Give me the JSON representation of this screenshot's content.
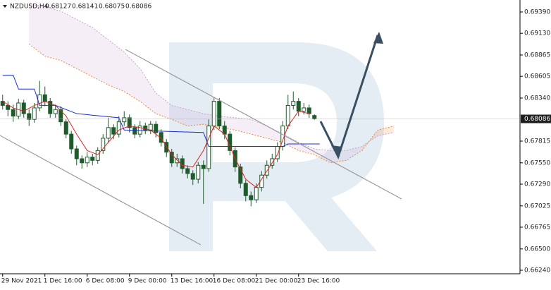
{
  "chart_data": {
    "type": "candlestick",
    "symbol": "NZDUSD,H4",
    "header_values": [
      0.68127,
      0.68141,
      0.68075,
      0.68086
    ],
    "categories": [
      "29 Nov 2021",
      null,
      null,
      null,
      null,
      null,
      null,
      null,
      "1 Dec 16:00",
      null,
      null,
      null,
      null,
      null,
      null,
      null,
      "6 Dec 08:00",
      null,
      null,
      null,
      null,
      null,
      null,
      null,
      "9 Dec 00:00",
      null,
      null,
      null,
      null,
      null,
      null,
      null,
      "13 Dec 16:00",
      null,
      null,
      null,
      null,
      null,
      null,
      null,
      "16 Dec 08:00",
      null,
      null,
      null,
      null,
      null,
      null,
      null,
      "21 Dec 00:00",
      null,
      null,
      null,
      null,
      null,
      null,
      null,
      "23 Dec 16:00",
      null,
      null,
      null
    ],
    "open": [
      0.683,
      0.6825,
      0.682,
      0.6812,
      0.6828,
      0.6815,
      0.6808,
      0.6822,
      0.6838,
      0.683,
      0.6815,
      0.682,
      0.6805,
      0.679,
      0.6772,
      0.676,
      0.6755,
      0.6762,
      0.6758,
      0.677,
      0.6785,
      0.6798,
      0.679,
      0.6805,
      0.681,
      0.6798,
      0.679,
      0.68,
      0.6795,
      0.6802,
      0.6792,
      0.678,
      0.6768,
      0.6755,
      0.676,
      0.6748,
      0.6742,
      0.6735,
      0.6752,
      0.6748,
      0.68,
      0.683,
      0.68,
      0.679,
      0.677,
      0.675,
      0.673,
      0.6715,
      0.671,
      0.6725,
      0.674,
      0.6752,
      0.676,
      0.6775,
      0.68,
      0.6825,
      0.683,
      0.6818,
      0.6822,
      0.68127
    ],
    "high": [
      0.6838,
      0.683,
      0.6826,
      0.6833,
      0.6832,
      0.682,
      0.6828,
      0.6855,
      0.6848,
      0.6834,
      0.6826,
      0.6824,
      0.6808,
      0.6794,
      0.6776,
      0.6764,
      0.6768,
      0.6766,
      0.6774,
      0.679,
      0.681,
      0.6802,
      0.6812,
      0.6818,
      0.6814,
      0.6802,
      0.6806,
      0.6804,
      0.6806,
      0.6806,
      0.6796,
      0.6784,
      0.6772,
      0.6766,
      0.6764,
      0.6752,
      0.6746,
      0.6756,
      0.6758,
      0.6808,
      0.6835,
      0.6834,
      0.6806,
      0.6794,
      0.6774,
      0.6754,
      0.6734,
      0.672,
      0.673,
      0.6745,
      0.6758,
      0.6766,
      0.678,
      0.6806,
      0.6838,
      0.6842,
      0.6834,
      0.6828,
      0.6826,
      0.68141
    ],
    "low": [
      0.682,
      0.6812,
      0.6805,
      0.6808,
      0.681,
      0.68,
      0.6804,
      0.6818,
      0.6824,
      0.681,
      0.681,
      0.68,
      0.6785,
      0.6766,
      0.6752,
      0.6748,
      0.675,
      0.6752,
      0.6754,
      0.6766,
      0.678,
      0.6784,
      0.6786,
      0.68,
      0.6792,
      0.6785,
      0.6786,
      0.679,
      0.679,
      0.6786,
      0.6775,
      0.6762,
      0.675,
      0.675,
      0.6742,
      0.6736,
      0.6728,
      0.673,
      0.6705,
      0.6744,
      0.6795,
      0.6796,
      0.6784,
      0.6764,
      0.6744,
      0.6724,
      0.6708,
      0.6702,
      0.6706,
      0.672,
      0.6736,
      0.6748,
      0.6756,
      0.677,
      0.6796,
      0.682,
      0.6812,
      0.6814,
      0.681,
      0.68075
    ],
    "close": [
      0.6825,
      0.682,
      0.6812,
      0.6828,
      0.6815,
      0.6808,
      0.6822,
      0.6838,
      0.683,
      0.6815,
      0.682,
      0.6805,
      0.679,
      0.6772,
      0.676,
      0.6755,
      0.6762,
      0.6758,
      0.677,
      0.6785,
      0.6798,
      0.679,
      0.6805,
      0.681,
      0.6798,
      0.679,
      0.68,
      0.6795,
      0.6802,
      0.6792,
      0.678,
      0.6768,
      0.6755,
      0.676,
      0.6748,
      0.6742,
      0.6735,
      0.6752,
      0.6748,
      0.68,
      0.683,
      0.68,
      0.679,
      0.677,
      0.675,
      0.673,
      0.6715,
      0.671,
      0.6725,
      0.674,
      0.6752,
      0.676,
      0.6775,
      0.68,
      0.6825,
      0.683,
      0.6818,
      0.6822,
      0.6815,
      0.68086
    ],
    "up_color": "#ffffff",
    "down_color": "#1f5a2c",
    "candle_stroke": "#1f5a2c",
    "lines": [
      {
        "color": "#e02020",
        "x": [
          0,
          2,
          4,
          6,
          8,
          10,
          12,
          14,
          16,
          18,
          20,
          22,
          24,
          26,
          28,
          30,
          32,
          34,
          36,
          38,
          40,
          42,
          44,
          46,
          48,
          50,
          52,
          54,
          56,
          58
        ],
        "values": [
          0.683,
          0.6822,
          0.6818,
          0.6825,
          0.683,
          0.6825,
          0.6812,
          0.679,
          0.677,
          0.6765,
          0.678,
          0.6795,
          0.68,
          0.6798,
          0.6795,
          0.6785,
          0.6765,
          0.6752,
          0.675,
          0.677,
          0.68,
          0.679,
          0.676,
          0.6735,
          0.6725,
          0.6745,
          0.6765,
          0.68,
          0.6818,
          0.6815
        ]
      },
      {
        "color": "#1c2fd8",
        "x": [
          0,
          2,
          3,
          6,
          7,
          10,
          14,
          22,
          23,
          38,
          39,
          53,
          54,
          60
        ],
        "values": [
          0.6862,
          0.6862,
          0.6845,
          0.6845,
          0.6825,
          0.6825,
          0.6815,
          0.681,
          0.6795,
          0.6792,
          0.6775,
          0.6775,
          0.6778,
          0.6778
        ]
      }
    ],
    "cloud": {
      "x": [
        5,
        8,
        11,
        14,
        17,
        20,
        23,
        26,
        29,
        32,
        35,
        38,
        41,
        44,
        47,
        50,
        53,
        56,
        59,
        62,
        65,
        68,
        71,
        74
      ],
      "span_a": [
        0.69,
        0.6885,
        0.688,
        0.687,
        0.686,
        0.685,
        0.6842,
        0.683,
        0.6815,
        0.6808,
        0.68,
        0.6802,
        0.6798,
        0.6795,
        0.679,
        0.6785,
        0.678,
        0.677,
        0.6765,
        0.6755,
        0.6758,
        0.677,
        0.6795,
        0.68
      ],
      "span_b": [
        0.6948,
        0.6946,
        0.694,
        0.693,
        0.692,
        0.6905,
        0.689,
        0.687,
        0.684,
        0.6825,
        0.682,
        0.6815,
        0.6812,
        0.681,
        0.6808,
        0.68,
        0.679,
        0.678,
        0.6772,
        0.677,
        0.677,
        0.6775,
        0.6788,
        0.6792
      ],
      "span_a_color": "#f08a3c",
      "span_b_color": "#c9a0d0"
    },
    "current_price": 0.68086,
    "ylim": [
      0.66197,
      0.69536
    ],
    "yticks": [
      {
        "value": 0.6939,
        "label": "0.69390"
      },
      {
        "value": 0.6913,
        "label": "0.69130"
      },
      0.68865,
      0.68605,
      {
        "value": 0.6834,
        "label": "0.68340"
      },
      0.67815,
      {
        "value": 0.6755,
        "label": "0.67550"
      },
      {
        "value": 0.6729,
        "label": "0.67290"
      },
      0.67025,
      0.66765,
      {
        "value": 0.665,
        "label": "0.66500"
      },
      {
        "value": 0.6624,
        "label": "0.66240"
      }
    ]
  }
}
